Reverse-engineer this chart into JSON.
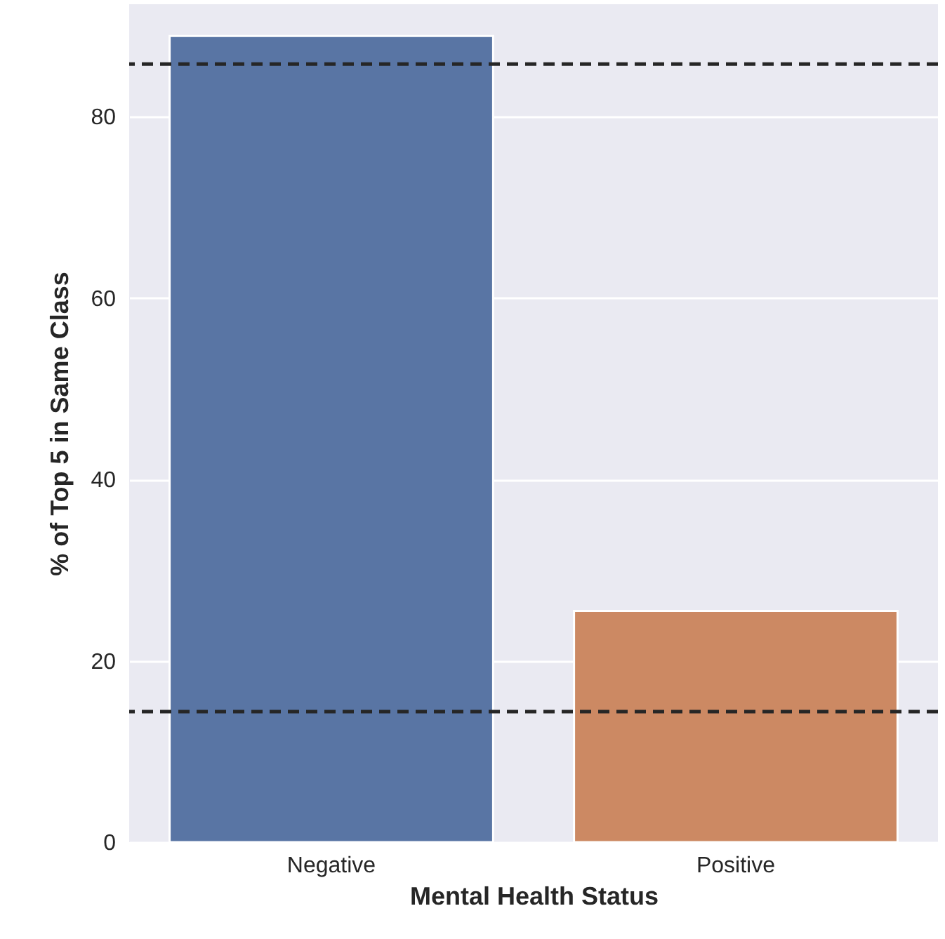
{
  "chart_data": {
    "type": "bar",
    "xlabel": "Mental Health Status",
    "ylabel": "% of Top 5 in Same Class",
    "categories": [
      "Negative",
      "Positive"
    ],
    "values": [
      88.9,
      25.5
    ],
    "colors": [
      "#5975a4",
      "#cc8963"
    ],
    "ylim": [
      0,
      92.4
    ],
    "yticks": [
      0,
      20,
      40,
      60,
      80
    ],
    "grid": "y",
    "ref_lines": [
      {
        "axis": "y",
        "value": 85.8,
        "color": "#262626",
        "line_style": "dashed"
      },
      {
        "axis": "y",
        "value": 14.4,
        "color": "#262626",
        "line_style": "dashed"
      }
    ]
  }
}
